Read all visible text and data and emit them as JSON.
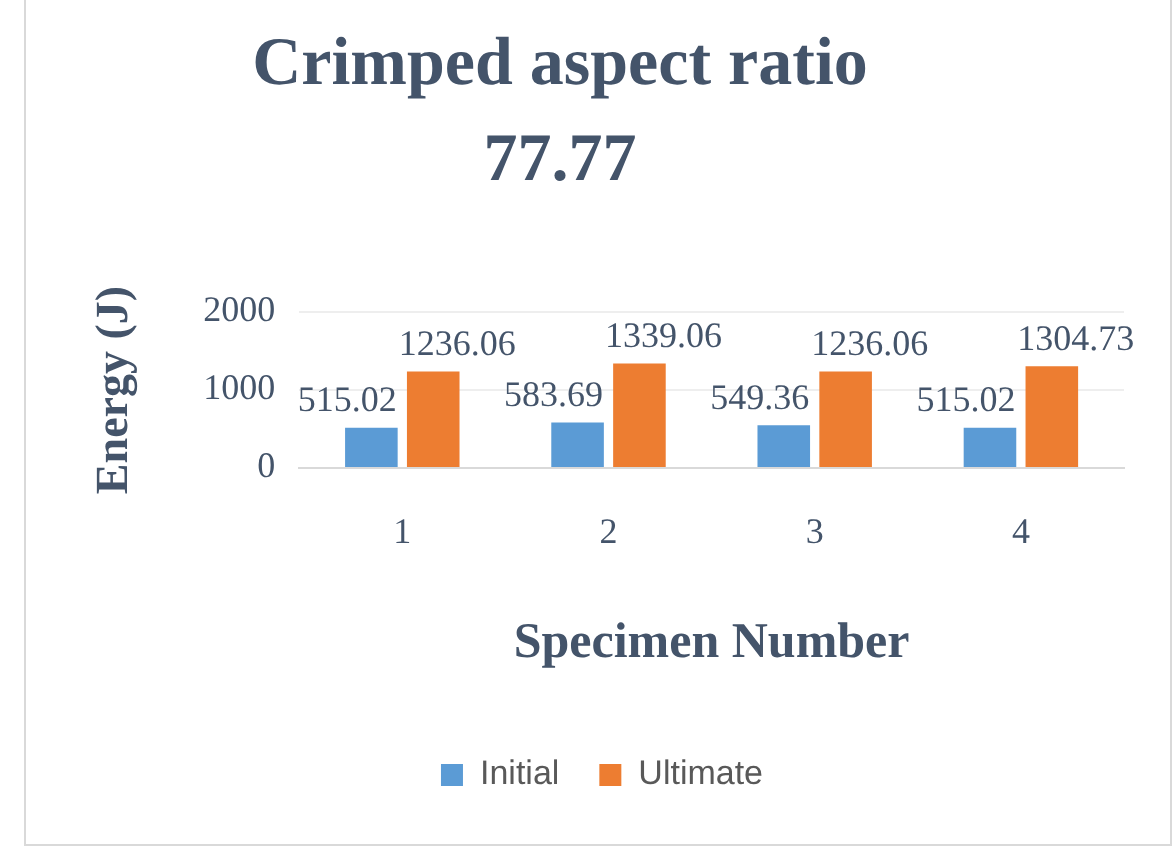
{
  "chart_data": {
    "type": "bar",
    "title": "Crimped aspect ratio 77.77",
    "xlabel": "Specimen Number",
    "ylabel": "Energy (J)",
    "categories": [
      "1",
      "2",
      "3",
      "4"
    ],
    "series": [
      {
        "name": "Initial",
        "color": "#5b9bd5",
        "values": [
          515.02,
          583.69,
          549.36,
          515.02
        ]
      },
      {
        "name": "Ultimate",
        "color": "#ed7d31",
        "values": [
          1236.06,
          1339.06,
          1236.06,
          1304.73
        ]
      }
    ],
    "ylim": [
      0,
      2000
    ],
    "yticks": [
      0,
      1000,
      2000
    ],
    "grid": "y",
    "legend": "bottom",
    "data_labels": true
  }
}
